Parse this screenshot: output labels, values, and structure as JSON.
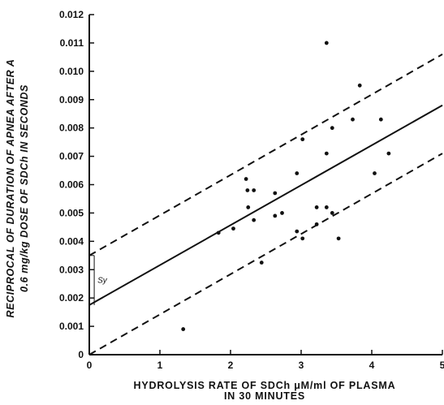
{
  "chart_data": {
    "type": "scatter",
    "xlabel_line1": "HYDROLYSIS RATE OF SDCh  μM/ml  OF  PLASMA",
    "xlabel_line2": "IN 30 MINUTES",
    "ylabel_line1": "RECIPROCAL OF DURATION OF APNEA AFTER A",
    "ylabel_line2": "0.6 mg/kg  DOSE OF  SDCh  IN  SECONDS",
    "xlim": [
      0,
      5
    ],
    "ylim": [
      0,
      0.012
    ],
    "x_ticks": [
      "0",
      "1",
      "2",
      "3",
      "4",
      "5"
    ],
    "y_ticks": [
      "0",
      "0.001",
      "0.002",
      "0.003",
      "0.004",
      "0.005",
      "0.006",
      "0.007",
      "0.008",
      "0.009",
      "0.010",
      "0.011",
      "0.012"
    ],
    "grid": false,
    "points": [
      {
        "x": 1.33,
        "y": 0.0009
      },
      {
        "x": 1.83,
        "y": 0.0043
      },
      {
        "x": 2.04,
        "y": 0.00445
      },
      {
        "x": 2.22,
        "y": 0.0062
      },
      {
        "x": 2.24,
        "y": 0.0058
      },
      {
        "x": 2.25,
        "y": 0.0052
      },
      {
        "x": 2.33,
        "y": 0.0058
      },
      {
        "x": 2.33,
        "y": 0.00475
      },
      {
        "x": 2.44,
        "y": 0.00325
      },
      {
        "x": 2.63,
        "y": 0.0057
      },
      {
        "x": 2.63,
        "y": 0.0049
      },
      {
        "x": 2.73,
        "y": 0.005
      },
      {
        "x": 2.94,
        "y": 0.0064
      },
      {
        "x": 2.94,
        "y": 0.00435
      },
      {
        "x": 3.02,
        "y": 0.0076
      },
      {
        "x": 3.02,
        "y": 0.0041
      },
      {
        "x": 3.22,
        "y": 0.0052
      },
      {
        "x": 3.22,
        "y": 0.0046
      },
      {
        "x": 3.36,
        "y": 0.011
      },
      {
        "x": 3.36,
        "y": 0.0071
      },
      {
        "x": 3.36,
        "y": 0.0052
      },
      {
        "x": 3.44,
        "y": 0.008
      },
      {
        "x": 3.44,
        "y": 0.005
      },
      {
        "x": 3.53,
        "y": 0.0041
      },
      {
        "x": 3.73,
        "y": 0.0083
      },
      {
        "x": 3.83,
        "y": 0.0095
      },
      {
        "x": 4.04,
        "y": 0.0064
      },
      {
        "x": 4.13,
        "y": 0.0083
      },
      {
        "x": 4.24,
        "y": 0.0071
      }
    ],
    "regression_line": {
      "x": [
        0,
        5
      ],
      "y": [
        0.00175,
        0.0088
      ]
    },
    "upper_bound": {
      "x": [
        0,
        5
      ],
      "y": [
        0.0035,
        0.0106
      ]
    },
    "lower_bound": {
      "x": [
        0,
        5
      ],
      "y": [
        0.0,
        0.0071
      ]
    },
    "sy_annotation": {
      "label": "Sy",
      "x": 0.07,
      "y_from": 0.00175,
      "y_to": 0.0035
    }
  }
}
